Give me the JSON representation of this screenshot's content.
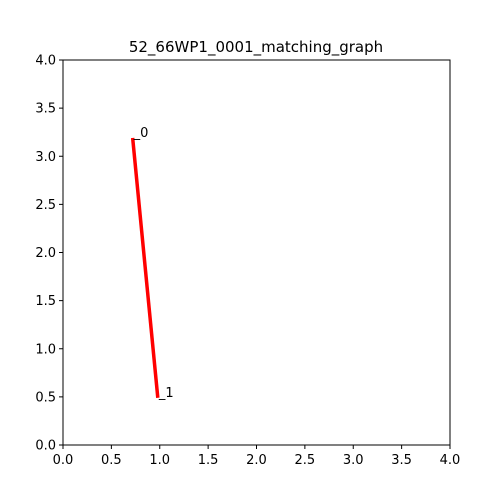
{
  "chart_data": {
    "type": "line",
    "title": "52_66WP1_0001_matching_graph",
    "xlabel": "",
    "ylabel": "",
    "xlim": [
      0,
      4
    ],
    "ylim": [
      0,
      4
    ],
    "xticks": [
      "0.0",
      "0.5",
      "1.0",
      "1.5",
      "2.0",
      "2.5",
      "3.0",
      "3.5",
      "4.0"
    ],
    "yticks": [
      "0.0",
      "0.5",
      "1.0",
      "1.5",
      "2.0",
      "2.5",
      "3.0",
      "3.5",
      "4.0"
    ],
    "grid": false,
    "series": [
      {
        "x": [
          0.72,
          0.98
        ],
        "y": [
          3.19,
          0.49
        ],
        "color": "#ff0000"
      }
    ],
    "nodes": [
      {
        "label": "_0",
        "x": 0.72,
        "y": 3.19
      },
      {
        "label": "_1",
        "x": 0.98,
        "y": 0.49
      }
    ]
  }
}
